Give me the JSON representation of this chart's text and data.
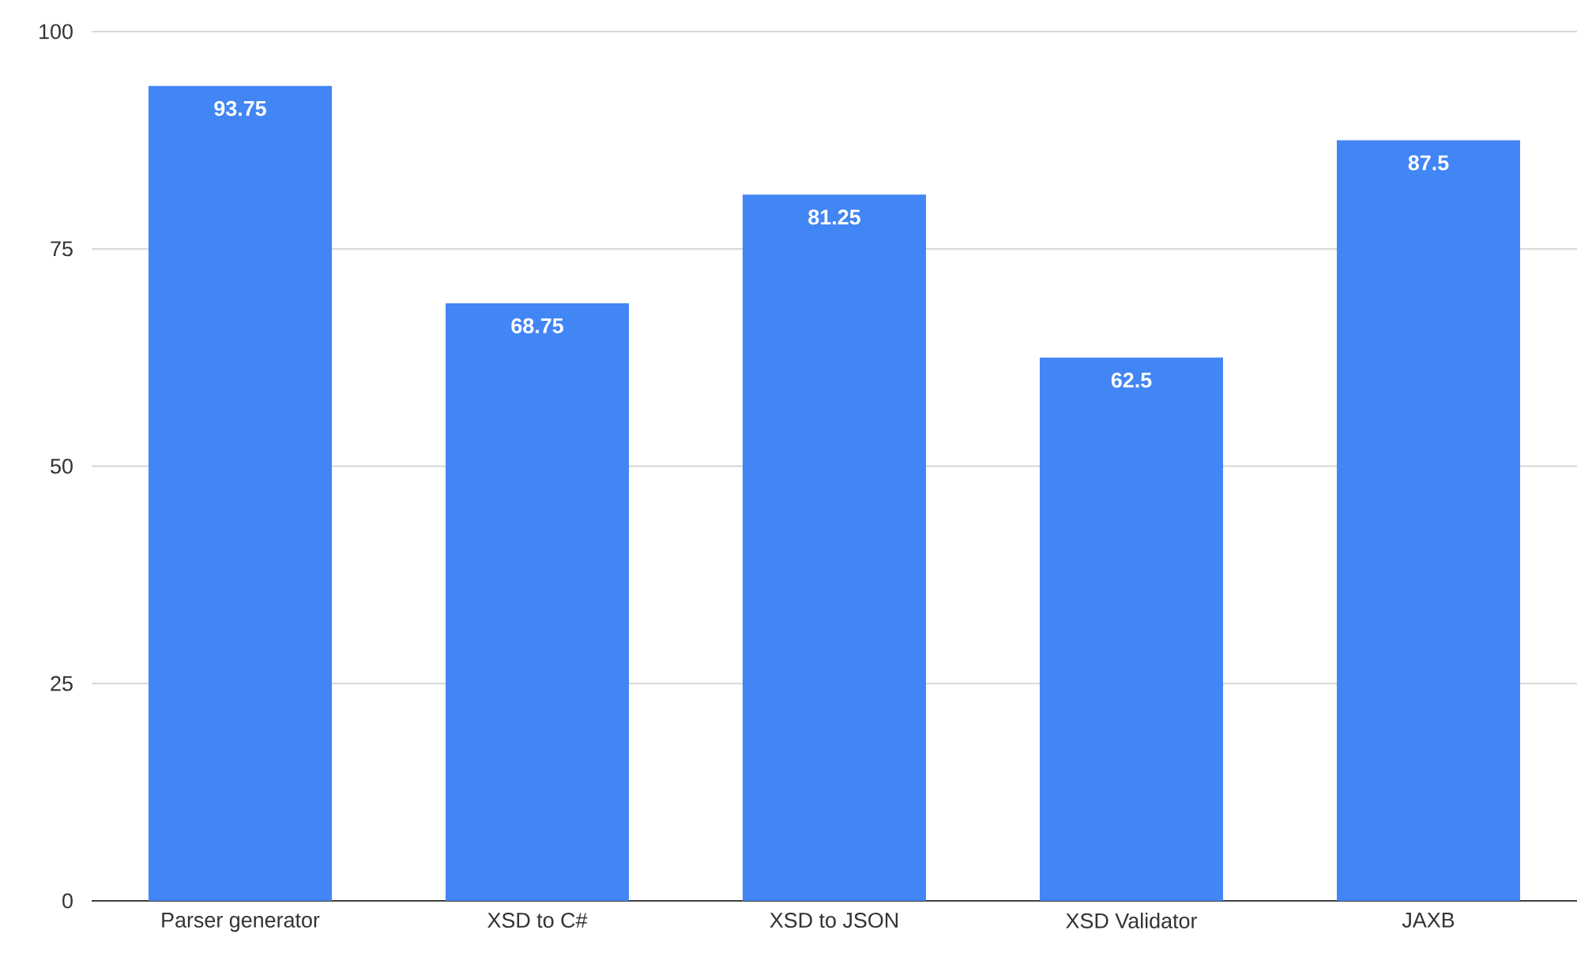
{
  "chart_data": {
    "type": "bar",
    "categories": [
      "Parser generator",
      "XSD to C#",
      "XSD to JSON",
      "XSD Validator",
      "JAXB"
    ],
    "values": [
      93.75,
      68.75,
      81.25,
      62.5,
      87.5
    ],
    "color": "#4285f4",
    "ylim": [
      0,
      100
    ],
    "yticks": [
      0,
      25,
      50,
      75,
      100
    ],
    "grid": "y",
    "data_labels": true
  }
}
